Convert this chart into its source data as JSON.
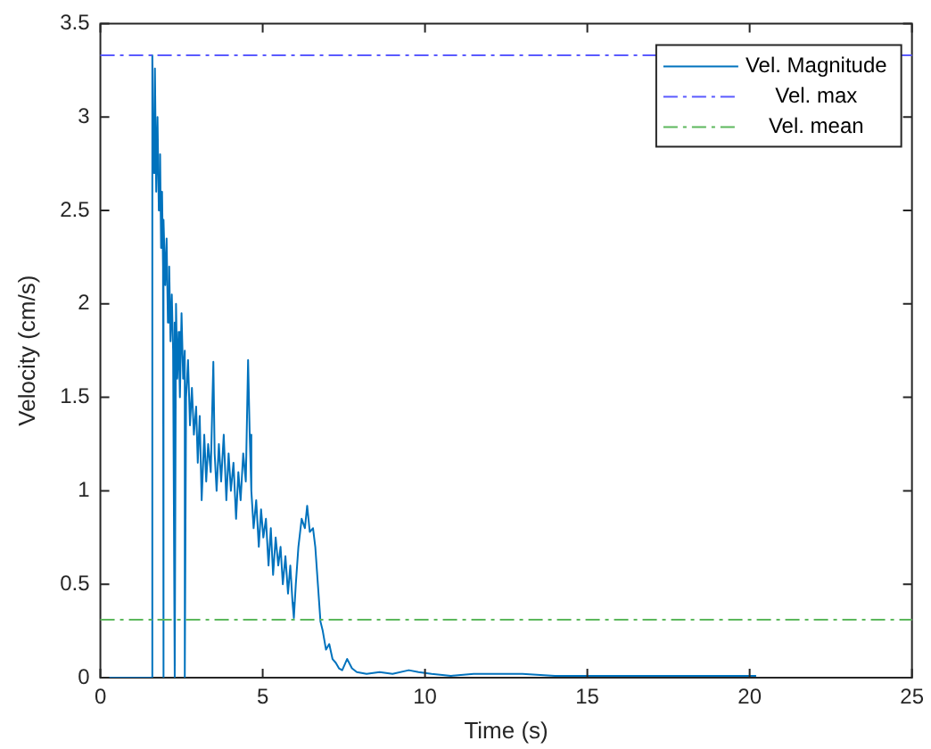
{
  "chart_data": {
    "type": "line",
    "xlabel": "Time (s)",
    "ylabel": "Velocity (cm/s)",
    "xlim": [
      0,
      25
    ],
    "xticks": [
      0,
      5,
      10,
      15,
      20,
      25
    ],
    "ylim": [
      0,
      3.5
    ],
    "yticks": [
      0,
      0.5,
      1,
      1.5,
      2,
      2.5,
      3,
      3.5
    ],
    "grid": false,
    "legend": "top right",
    "marker": "none",
    "line_style": "solid",
    "series": [
      {
        "name": "Vel. Magnitude",
        "color": "#0072bd",
        "x": [
          0,
          1.6,
          1.6,
          1.65,
          1.68,
          1.72,
          1.76,
          1.8,
          1.84,
          1.87,
          1.9,
          1.93,
          1.93,
          1.96,
          2.0,
          2.04,
          2.08,
          2.12,
          2.16,
          2.2,
          2.24,
          2.29,
          2.29,
          2.33,
          2.37,
          2.41,
          2.45,
          2.5,
          2.55,
          2.6,
          2.6,
          2.64,
          2.7,
          2.76,
          2.82,
          2.88,
          2.95,
          3.0,
          3.06,
          3.12,
          3.2,
          3.26,
          3.32,
          3.4,
          3.48,
          3.52,
          3.58,
          3.65,
          3.72,
          3.8,
          3.88,
          3.95,
          4.02,
          4.1,
          4.18,
          4.25,
          4.32,
          4.4,
          4.48,
          4.55,
          4.6,
          4.65,
          4.72,
          4.8,
          4.88,
          4.95,
          5.02,
          5.1,
          5.18,
          5.25,
          5.32,
          5.4,
          5.48,
          5.55,
          5.62,
          5.7,
          5.78,
          5.85,
          5.92,
          5.96,
          6.02,
          6.1,
          6.2,
          6.3,
          6.37,
          6.45,
          6.55,
          6.62,
          6.7,
          6.78,
          6.85,
          6.95,
          7.05,
          7.15,
          7.25,
          7.35,
          7.45,
          7.6,
          7.75,
          7.9,
          8.2,
          8.6,
          9.0,
          9.5,
          9.8,
          10.2,
          10.8,
          11.5,
          12.2,
          13,
          14,
          15,
          16.5,
          18,
          19,
          20.2
        ],
        "values": [
          0,
          0,
          3.33,
          2.7,
          3.26,
          2.6,
          3.0,
          2.5,
          2.8,
          2.3,
          2.6,
          2.2,
          0,
          2.45,
          2.1,
          2.35,
          1.9,
          2.2,
          1.8,
          2.05,
          1.75,
          1.9,
          0,
          2.0,
          1.6,
          1.85,
          1.5,
          1.95,
          1.6,
          1.75,
          0,
          1.5,
          1.7,
          1.35,
          1.55,
          1.3,
          1.45,
          1.15,
          1.4,
          0.95,
          1.3,
          1.05,
          1.25,
          1.1,
          1.69,
          1.2,
          1.0,
          1.25,
          1.05,
          1.3,
          0.95,
          1.2,
          1.0,
          1.15,
          0.85,
          1.1,
          0.95,
          1.2,
          1.05,
          1.7,
          1.3,
          1.0,
          0.8,
          0.95,
          0.7,
          0.9,
          0.75,
          0.85,
          0.6,
          0.8,
          0.55,
          0.75,
          0.6,
          0.7,
          0.5,
          0.65,
          0.45,
          0.6,
          0.4,
          0.32,
          0.5,
          0.7,
          0.85,
          0.8,
          0.92,
          0.78,
          0.8,
          0.7,
          0.5,
          0.3,
          0.25,
          0.15,
          0.18,
          0.1,
          0.08,
          0.05,
          0.04,
          0.1,
          0.05,
          0.03,
          0.02,
          0.03,
          0.02,
          0.04,
          0.03,
          0.02,
          0.01,
          0.02,
          0.02,
          0.02,
          0.01,
          0.01,
          0.01,
          0.01,
          0.01,
          0.01
        ]
      }
    ],
    "ref_lines": [
      {
        "axis": "y",
        "value": 3.33,
        "label": "Vel. max",
        "color": "#5a5aff",
        "line_style": "dashed"
      },
      {
        "axis": "y",
        "value": 0.31,
        "label": "Vel. mean",
        "color": "#5cb85c",
        "line_style": "dashed"
      }
    ]
  }
}
